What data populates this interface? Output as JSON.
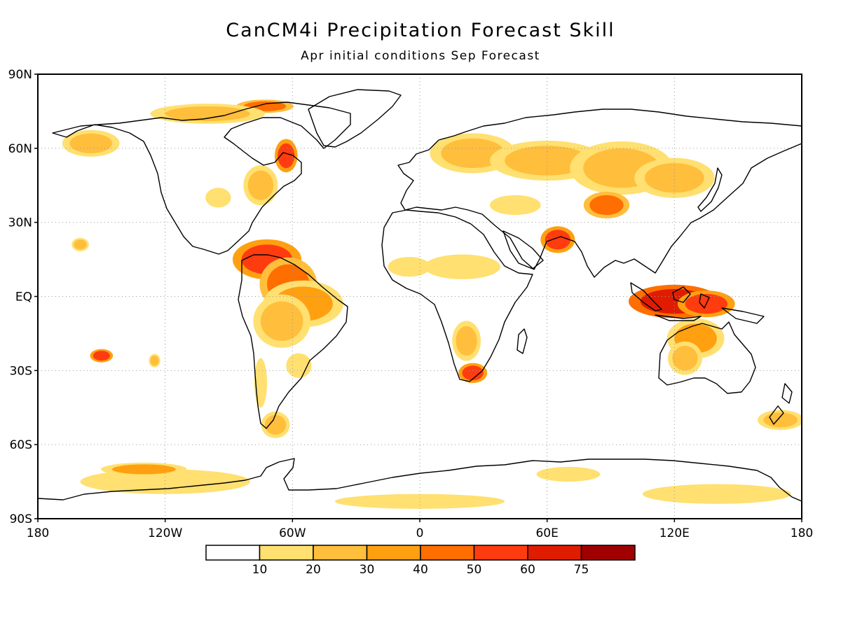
{
  "title": "CanCM4i Precipitation Forecast Skill",
  "subtitle": "Apr initial conditions   Sep Forecast",
  "map": {
    "lon_range": [
      -180,
      180
    ],
    "lat_range": [
      -90,
      90
    ],
    "grid": true,
    "lon_ticks": [
      {
        "value": -180,
        "label": "180"
      },
      {
        "value": -120,
        "label": "120W"
      },
      {
        "value": -60,
        "label": "60W"
      },
      {
        "value": 0,
        "label": "0"
      },
      {
        "value": 60,
        "label": "60E"
      },
      {
        "value": 120,
        "label": "120E"
      },
      {
        "value": 180,
        "label": "180"
      }
    ],
    "lat_ticks": [
      {
        "value": 90,
        "label": "90N"
      },
      {
        "value": 60,
        "label": "60N"
      },
      {
        "value": 30,
        "label": "30N"
      },
      {
        "value": 0,
        "label": "EQ"
      },
      {
        "value": -30,
        "label": "30S"
      },
      {
        "value": -60,
        "label": "60S"
      },
      {
        "value": -90,
        "label": "90S"
      }
    ]
  },
  "colorbar": {
    "bins": [
      {
        "color": "#ffffff"
      },
      {
        "color": "#ffe070"
      },
      {
        "color": "#ffbe3c"
      },
      {
        "color": "#ffa010"
      },
      {
        "color": "#ff6e00"
      },
      {
        "color": "#ff3c10"
      },
      {
        "color": "#e01c00"
      },
      {
        "color": "#a00000"
      }
    ],
    "labels": [
      "10",
      "20",
      "30",
      "40",
      "50",
      "60",
      "75"
    ]
  },
  "skill_regions": [
    {
      "lon": -72,
      "lat": 15,
      "rx": 12,
      "ry": 6,
      "level": 5
    },
    {
      "lon": -62,
      "lat": 5,
      "rx": 10,
      "ry": 8,
      "level": 4
    },
    {
      "lon": -55,
      "lat": -3,
      "rx": 14,
      "ry": 7,
      "level": 3
    },
    {
      "lon": -65,
      "lat": -10,
      "rx": 10,
      "ry": 8,
      "level": 2
    },
    {
      "lon": -75,
      "lat": -35,
      "rx": 3,
      "ry": 10,
      "level": 1
    },
    {
      "lon": -57,
      "lat": -28,
      "rx": 6,
      "ry": 5,
      "level": 1
    },
    {
      "lon": -68,
      "lat": -52,
      "rx": 5,
      "ry": 4,
      "level": 2
    },
    {
      "lon": -73,
      "lat": 77,
      "rx": 10,
      "ry": 2,
      "level": 4
    },
    {
      "lon": -100,
      "lat": 74,
      "rx": 20,
      "ry": 3,
      "level": 2
    },
    {
      "lon": -63,
      "lat": 57,
      "rx": 4,
      "ry": 5,
      "level": 5
    },
    {
      "lon": -75,
      "lat": 45,
      "rx": 6,
      "ry": 6,
      "level": 2
    },
    {
      "lon": -95,
      "lat": 40,
      "rx": 6,
      "ry": 4,
      "level": 1
    },
    {
      "lon": -155,
      "lat": 62,
      "rx": 10,
      "ry": 4,
      "level": 2
    },
    {
      "lon": -160,
      "lat": 21,
      "rx": 3,
      "ry": 2,
      "level": 2
    },
    {
      "lon": -150,
      "lat": -24,
      "rx": 4,
      "ry": 2,
      "level": 5
    },
    {
      "lon": -125,
      "lat": -26,
      "rx": 2,
      "ry": 2,
      "level": 2
    },
    {
      "lon": 25,
      "lat": 58,
      "rx": 15,
      "ry": 6,
      "level": 2
    },
    {
      "lon": 60,
      "lat": 55,
      "rx": 20,
      "ry": 6,
      "level": 2
    },
    {
      "lon": 95,
      "lat": 52,
      "rx": 18,
      "ry": 8,
      "level": 2
    },
    {
      "lon": 88,
      "lat": 37,
      "rx": 8,
      "ry": 4,
      "level": 4
    },
    {
      "lon": 120,
      "lat": 48,
      "rx": 14,
      "ry": 6,
      "level": 2
    },
    {
      "lon": 45,
      "lat": 37,
      "rx": 12,
      "ry": 4,
      "level": 1
    },
    {
      "lon": 20,
      "lat": 12,
      "rx": 18,
      "ry": 5,
      "level": 1
    },
    {
      "lon": -5,
      "lat": 12,
      "rx": 10,
      "ry": 4,
      "level": 1
    },
    {
      "lon": 22,
      "lat": -18,
      "rx": 5,
      "ry": 6,
      "level": 2
    },
    {
      "lon": 25,
      "lat": -31,
      "rx": 5,
      "ry": 3,
      "level": 5
    },
    {
      "lon": 65,
      "lat": 23,
      "rx": 6,
      "ry": 4,
      "level": 5
    },
    {
      "lon": 120,
      "lat": -2,
      "rx": 16,
      "ry": 5,
      "level": 6
    },
    {
      "lon": 135,
      "lat": -3,
      "rx": 10,
      "ry": 4,
      "level": 5
    },
    {
      "lon": 130,
      "lat": -17,
      "rx": 10,
      "ry": 6,
      "level": 3
    },
    {
      "lon": 125,
      "lat": -25,
      "rx": 6,
      "ry": 5,
      "level": 2
    },
    {
      "lon": 170,
      "lat": -50,
      "rx": 8,
      "ry": 3,
      "level": 2
    },
    {
      "lon": -120,
      "lat": -75,
      "rx": 40,
      "ry": 5,
      "level": 1
    },
    {
      "lon": -130,
      "lat": -70,
      "rx": 15,
      "ry": 2,
      "level": 3
    },
    {
      "lon": 140,
      "lat": -80,
      "rx": 35,
      "ry": 4,
      "level": 1
    },
    {
      "lon": 70,
      "lat": -72,
      "rx": 15,
      "ry": 3,
      "level": 1
    },
    {
      "lon": 0,
      "lat": -83,
      "rx": 40,
      "ry": 3,
      "level": 1
    }
  ]
}
